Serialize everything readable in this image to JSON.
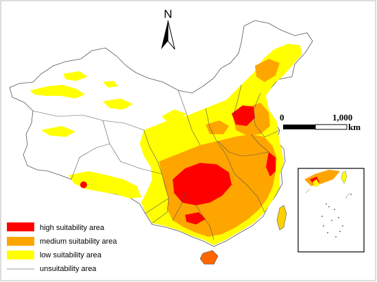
{
  "north_arrow": {
    "label": "N"
  },
  "scale_bar": {
    "start": "0",
    "end": "1,000",
    "unit": "km"
  },
  "legend": [
    {
      "label": "high suitability area",
      "color": "#ff0000"
    },
    {
      "label": "medium suitability area",
      "color": "#ffa500"
    },
    {
      "label": "low suitability area",
      "color": "#ffff00"
    },
    {
      "label": "unsuitability area",
      "color": "#ffffff"
    }
  ],
  "colors": {
    "boundary": "#555555",
    "outline": "#000000"
  }
}
